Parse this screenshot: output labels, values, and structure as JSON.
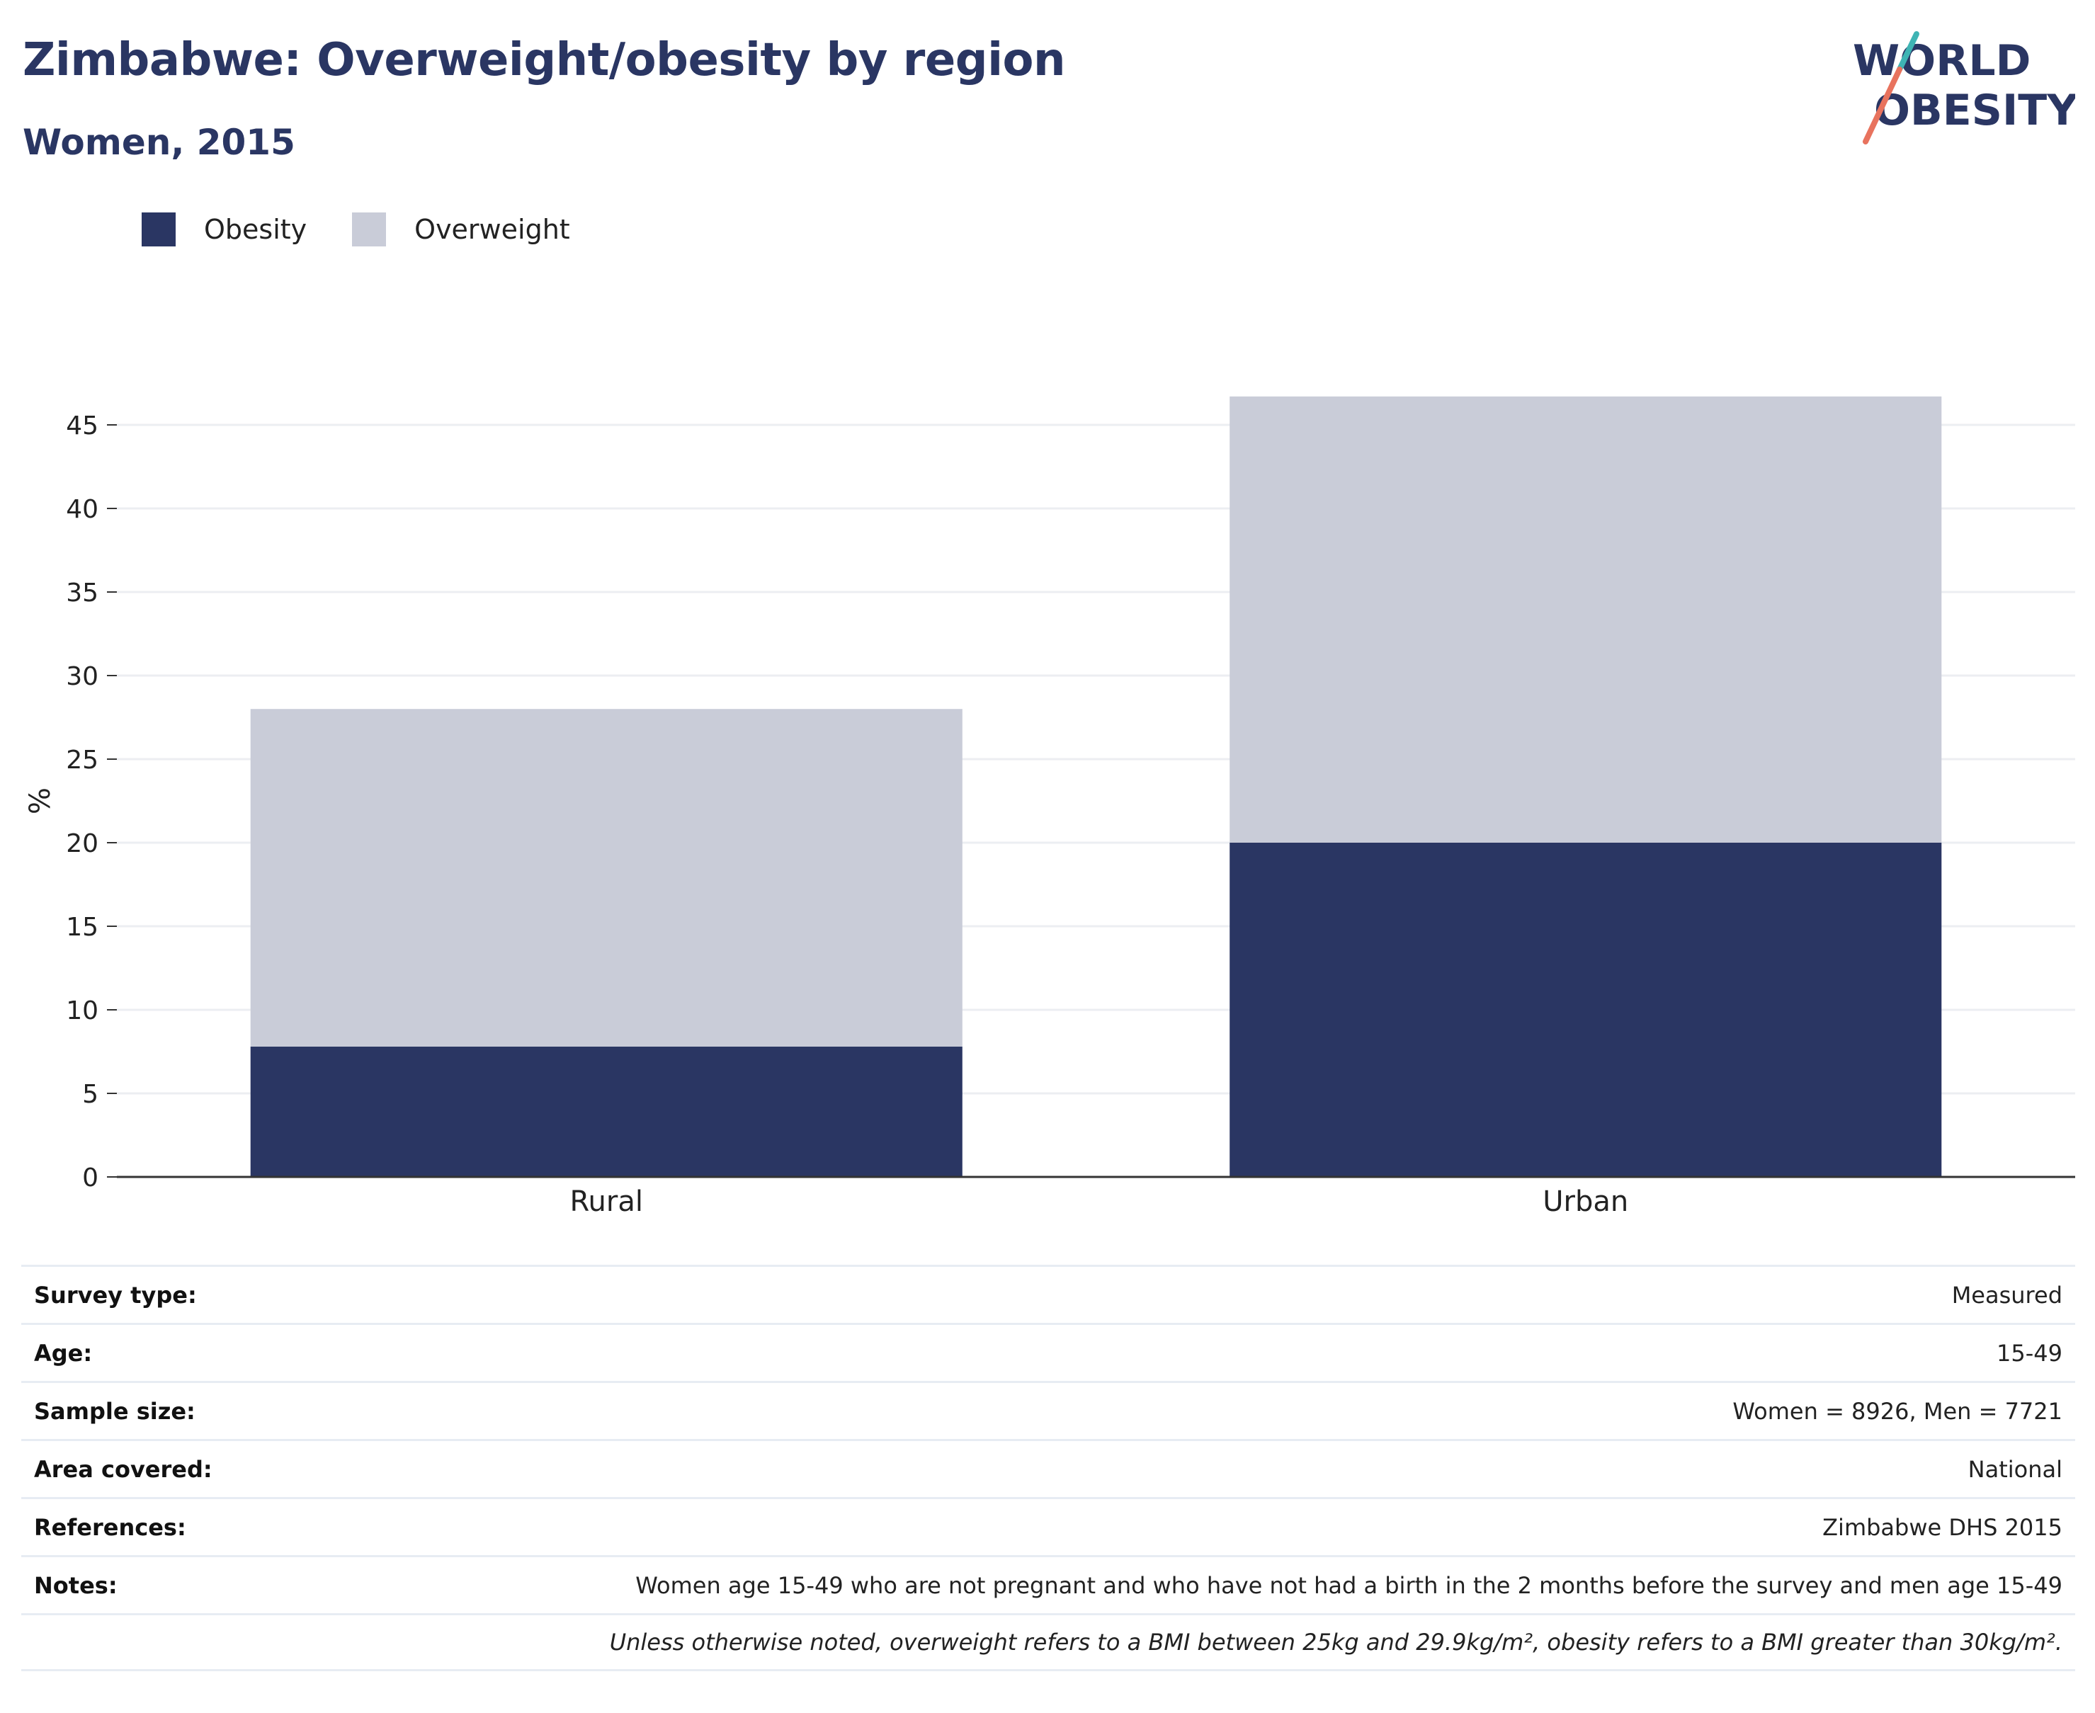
{
  "header": {
    "title": "Zimbabwe: Overweight/obesity by region",
    "subtitle": "Women, 2015"
  },
  "logo": {
    "line1": "WORLD",
    "line2": "OBESITY"
  },
  "colors": {
    "obesity": "#2a3663",
    "overweight": "#c9ccd8",
    "brand": "#2a3663",
    "accent_teal": "#3fb4b4",
    "accent_coral": "#e8735e"
  },
  "chart_data": {
    "type": "bar",
    "stacked": true,
    "categories": [
      "Rural",
      "Urban"
    ],
    "series": [
      {
        "name": "Obesity",
        "values": [
          7.8,
          20.0
        ],
        "color": "#2a3663"
      },
      {
        "name": "Overweight",
        "values": [
          20.2,
          26.7
        ],
        "color": "#c9ccd8"
      }
    ],
    "ylabel": "%",
    "ylim": [
      0,
      45
    ],
    "yticks": [
      "0",
      "5",
      "10",
      "15",
      "20",
      "25",
      "30",
      "35",
      "40",
      "45"
    ],
    "grid": true,
    "legend": "top-left"
  },
  "info": [
    {
      "label": "Survey type:",
      "value": "Measured"
    },
    {
      "label": "Age:",
      "value": "15-49"
    },
    {
      "label": "Sample size:",
      "value": "Women = 8926, Men = 7721"
    },
    {
      "label": "Area covered:",
      "value": "National"
    },
    {
      "label": "References:",
      "value": "Zimbabwe DHS 2015"
    },
    {
      "label": "Notes:",
      "value": "Women age 15-49 who are not pregnant and who have not had a birth in the 2 months before the survey and men age 15-49"
    }
  ],
  "footnote": "Unless otherwise noted, overweight refers to a BMI between 25kg and 29.9kg/m², obesity refers to a BMI greater than 30kg/m²."
}
